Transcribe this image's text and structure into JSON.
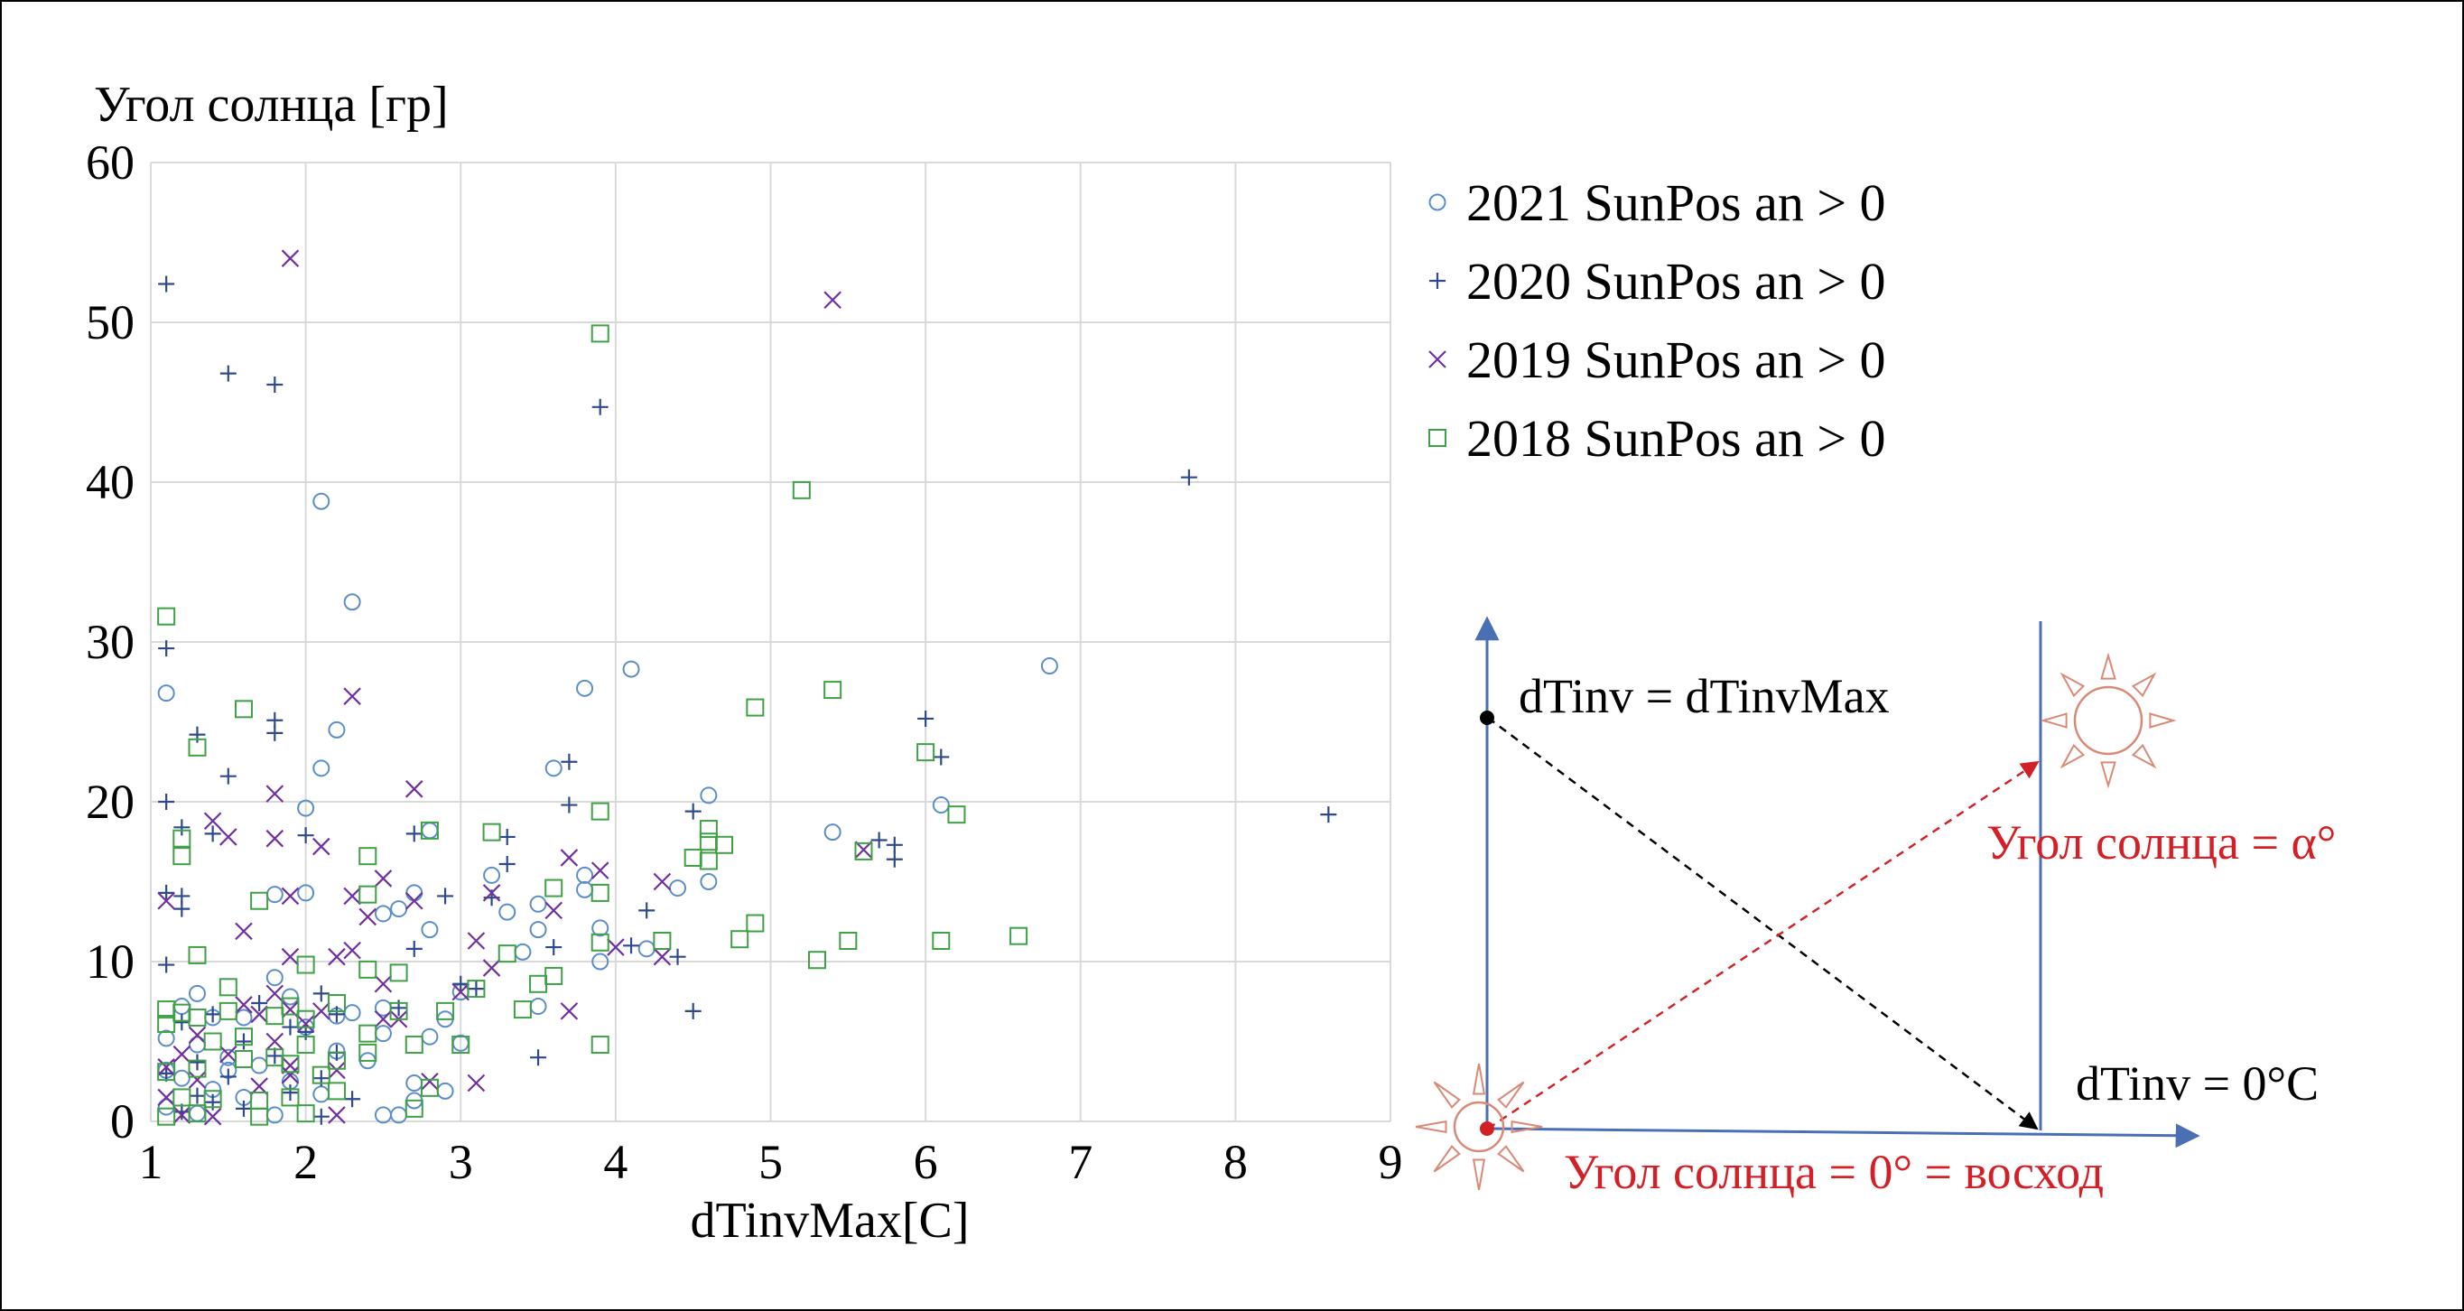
{
  "chart_data": {
    "type": "scatter",
    "title": "",
    "xlabel": "dTinvMax[C]",
    "ylabel": "Угол солнца [гр]",
    "xlim": [
      1,
      9
    ],
    "ylim": [
      0,
      60
    ],
    "x_ticks": [
      1,
      2,
      3,
      4,
      5,
      6,
      7,
      8,
      9
    ],
    "y_ticks": [
      0,
      10,
      20,
      30,
      40,
      50,
      60
    ],
    "grid": true,
    "legend_position": "right",
    "series": [
      {
        "name": "2021 SunPos an > 0",
        "marker": "circle",
        "color": "#5b8ec9",
        "points": [
          [
            1.1,
            26.8
          ],
          [
            2.1,
            38.8
          ],
          [
            2.3,
            32.5
          ],
          [
            3.8,
            27.1
          ],
          [
            4.1,
            28.3
          ],
          [
            6.8,
            28.5
          ],
          [
            2.2,
            24.5
          ],
          [
            2.1,
            22.1
          ],
          [
            3.6,
            22.1
          ],
          [
            4.6,
            20.4
          ],
          [
            6.1,
            19.8
          ],
          [
            2.0,
            19.6
          ],
          [
            5.4,
            18.1
          ],
          [
            2.8,
            18.2
          ],
          [
            3.2,
            15.4
          ],
          [
            3.5,
            13.6
          ],
          [
            3.8,
            15.4
          ],
          [
            4.6,
            15.0
          ],
          [
            1.8,
            14.2
          ],
          [
            2.0,
            14.3
          ],
          [
            2.7,
            14.3
          ],
          [
            4.4,
            14.6
          ],
          [
            2.5,
            13.0
          ],
          [
            3.3,
            13.1
          ],
          [
            2.6,
            13.3
          ],
          [
            2.8,
            12.0
          ],
          [
            3.5,
            12.0
          ],
          [
            3.9,
            12.1
          ],
          [
            3.4,
            10.6
          ],
          [
            3.0,
            8.1
          ],
          [
            3.9,
            10.0
          ],
          [
            2.5,
            7.1
          ],
          [
            2.9,
            6.4
          ],
          [
            2.2,
            6.6
          ],
          [
            1.2,
            7.2
          ],
          [
            1.3,
            8.0
          ],
          [
            1.4,
            6.5
          ],
          [
            1.8,
            9.0
          ],
          [
            1.1,
            5.2
          ],
          [
            1.6,
            6.5
          ],
          [
            2.0,
            5.9
          ],
          [
            2.5,
            5.5
          ],
          [
            2.8,
            5.3
          ],
          [
            1.3,
            4.8
          ],
          [
            1.5,
            4.0
          ],
          [
            1.1,
            3.2
          ],
          [
            1.7,
            3.5
          ],
          [
            1.9,
            2.5
          ],
          [
            2.4,
            3.8
          ],
          [
            2.7,
            1.3
          ],
          [
            1.2,
            2.7
          ],
          [
            1.4,
            2.0
          ],
          [
            1.6,
            1.5
          ],
          [
            2.1,
            1.7
          ],
          [
            2.9,
            1.9
          ],
          [
            3.5,
            7.2
          ],
          [
            3.8,
            14.5
          ],
          [
            2.5,
            0.4
          ],
          [
            2.6,
            0.4
          ],
          [
            1.8,
            0.4
          ],
          [
            1.3,
            0.5
          ],
          [
            1.1,
            0.9
          ],
          [
            2.7,
            2.4
          ],
          [
            3.0,
            4.9
          ],
          [
            2.3,
            6.8
          ],
          [
            1.5,
            3.2
          ],
          [
            4.2,
            10.8
          ],
          [
            2.2,
            4.4
          ],
          [
            1.9,
            7.8
          ]
        ]
      },
      {
        "name": "2020 SunPos an > 0",
        "marker": "plus",
        "color": "#2e4a8c",
        "points": [
          [
            1.1,
            52.4
          ],
          [
            1.5,
            46.8
          ],
          [
            1.8,
            46.1
          ],
          [
            3.9,
            44.7
          ],
          [
            7.7,
            40.3
          ],
          [
            1.1,
            29.6
          ],
          [
            1.8,
            25.1
          ],
          [
            1.8,
            24.3
          ],
          [
            1.3,
            24.2
          ],
          [
            6.0,
            25.2
          ],
          [
            6.1,
            22.8
          ],
          [
            1.5,
            21.6
          ],
          [
            3.7,
            22.5
          ],
          [
            1.1,
            20.0
          ],
          [
            3.7,
            19.8
          ],
          [
            4.5,
            19.4
          ],
          [
            8.6,
            19.2
          ],
          [
            2.0,
            17.9
          ],
          [
            1.2,
            18.4
          ],
          [
            1.4,
            18.0
          ],
          [
            2.7,
            18.0
          ],
          [
            3.3,
            17.8
          ],
          [
            5.7,
            17.6
          ],
          [
            5.8,
            17.3
          ],
          [
            5.8,
            16.4
          ],
          [
            3.3,
            16.1
          ],
          [
            1.1,
            14.3
          ],
          [
            1.2,
            14.1
          ],
          [
            1.2,
            13.3
          ],
          [
            2.9,
            14.1
          ],
          [
            3.2,
            14.0
          ],
          [
            2.7,
            10.8
          ],
          [
            3.6,
            10.9
          ],
          [
            4.2,
            13.2
          ],
          [
            4.4,
            10.3
          ],
          [
            1.1,
            9.8
          ],
          [
            2.1,
            8.0
          ],
          [
            3.0,
            8.6
          ],
          [
            3.1,
            8.3
          ],
          [
            1.4,
            6.7
          ],
          [
            1.7,
            7.4
          ],
          [
            2.2,
            6.7
          ],
          [
            2.6,
            7.1
          ],
          [
            1.2,
            6.2
          ],
          [
            1.6,
            5.0
          ],
          [
            2.0,
            5.6
          ],
          [
            2.2,
            4.3
          ],
          [
            1.8,
            4.1
          ],
          [
            1.3,
            3.7
          ],
          [
            1.5,
            2.8
          ],
          [
            1.1,
            3.0
          ],
          [
            2.1,
            2.7
          ],
          [
            1.9,
            1.8
          ],
          [
            2.3,
            1.4
          ],
          [
            1.4,
            1.2
          ],
          [
            1.2,
            0.6
          ],
          [
            2.1,
            0.3
          ],
          [
            1.6,
            0.8
          ],
          [
            3.5,
            4.0
          ],
          [
            4.5,
            6.9
          ],
          [
            4.1,
            11.0
          ],
          [
            1.9,
            5.9
          ],
          [
            1.3,
            1.6
          ]
        ]
      },
      {
        "name": "2019 SunPos an > 0",
        "marker": "x",
        "color": "#7030a0",
        "points": [
          [
            1.9,
            54.0
          ],
          [
            5.4,
            51.4
          ],
          [
            2.3,
            26.6
          ],
          [
            2.7,
            20.8
          ],
          [
            1.8,
            20.5
          ],
          [
            1.4,
            18.8
          ],
          [
            1.5,
            17.8
          ],
          [
            1.8,
            17.7
          ],
          [
            2.1,
            17.2
          ],
          [
            3.7,
            16.5
          ],
          [
            3.9,
            15.7
          ],
          [
            2.5,
            15.2
          ],
          [
            4.3,
            15.0
          ],
          [
            3.6,
            13.2
          ],
          [
            2.3,
            14.1
          ],
          [
            1.1,
            13.8
          ],
          [
            1.9,
            14.1
          ],
          [
            2.4,
            12.8
          ],
          [
            2.7,
            13.8
          ],
          [
            3.2,
            14.3
          ],
          [
            1.6,
            11.9
          ],
          [
            3.1,
            11.3
          ],
          [
            4.3,
            10.3
          ],
          [
            1.9,
            10.3
          ],
          [
            2.2,
            10.3
          ],
          [
            2.3,
            10.7
          ],
          [
            4.0,
            10.9
          ],
          [
            2.5,
            8.6
          ],
          [
            1.8,
            8.0
          ],
          [
            3.0,
            8.1
          ],
          [
            3.2,
            9.6
          ],
          [
            1.9,
            7.0
          ],
          [
            1.7,
            6.7
          ],
          [
            2.1,
            6.9
          ],
          [
            2.5,
            6.4
          ],
          [
            3.7,
            6.9
          ],
          [
            1.3,
            5.4
          ],
          [
            1.8,
            5.0
          ],
          [
            2.0,
            6.1
          ],
          [
            2.6,
            6.4
          ],
          [
            1.2,
            4.2
          ],
          [
            1.5,
            4.2
          ],
          [
            1.9,
            3.5
          ],
          [
            2.2,
            3.2
          ],
          [
            1.1,
            3.4
          ],
          [
            1.3,
            2.6
          ],
          [
            1.7,
            2.2
          ],
          [
            2.8,
            2.5
          ],
          [
            3.1,
            2.4
          ],
          [
            1.2,
            0.4
          ],
          [
            1.4,
            0.3
          ],
          [
            2.2,
            0.4
          ],
          [
            1.1,
            1.5
          ],
          [
            5.6,
            17.0
          ],
          [
            1.9,
            2.9
          ],
          [
            1.6,
            7.3
          ]
        ]
      },
      {
        "name": "2018 SunPos an > 0",
        "marker": "square",
        "color": "#3fa045",
        "points": [
          [
            3.9,
            49.3
          ],
          [
            5.2,
            39.5
          ],
          [
            1.1,
            31.6
          ],
          [
            5.4,
            27.0
          ],
          [
            4.9,
            25.9
          ],
          [
            1.6,
            25.8
          ],
          [
            1.3,
            23.4
          ],
          [
            6.0,
            23.1
          ],
          [
            2.4,
            16.6
          ],
          [
            1.2,
            17.7
          ],
          [
            1.2,
            16.6
          ],
          [
            1.7,
            13.8
          ],
          [
            2.4,
            14.2
          ],
          [
            2.8,
            18.2
          ],
          [
            3.2,
            18.1
          ],
          [
            3.9,
            19.4
          ],
          [
            4.6,
            18.3
          ],
          [
            4.6,
            17.5
          ],
          [
            4.7,
            17.3
          ],
          [
            4.6,
            16.3
          ],
          [
            4.5,
            16.5
          ],
          [
            5.6,
            16.9
          ],
          [
            6.2,
            19.2
          ],
          [
            3.6,
            14.6
          ],
          [
            3.9,
            14.3
          ],
          [
            1.3,
            10.4
          ],
          [
            1.5,
            8.4
          ],
          [
            2.0,
            9.8
          ],
          [
            2.4,
            9.5
          ],
          [
            2.6,
            9.3
          ],
          [
            3.3,
            10.5
          ],
          [
            3.5,
            8.6
          ],
          [
            3.6,
            9.1
          ],
          [
            3.1,
            8.3
          ],
          [
            3.9,
            11.2
          ],
          [
            4.8,
            11.4
          ],
          [
            4.9,
            12.4
          ],
          [
            5.3,
            10.1
          ],
          [
            5.5,
            11.3
          ],
          [
            6.1,
            11.3
          ],
          [
            6.6,
            11.6
          ],
          [
            4.3,
            11.3
          ],
          [
            1.1,
            7.0
          ],
          [
            1.2,
            6.8
          ],
          [
            1.3,
            6.5
          ],
          [
            1.1,
            6.1
          ],
          [
            1.5,
            6.9
          ],
          [
            1.8,
            6.6
          ],
          [
            1.9,
            7.2
          ],
          [
            2.0,
            6.4
          ],
          [
            2.2,
            7.4
          ],
          [
            2.6,
            6.9
          ],
          [
            2.9,
            6.9
          ],
          [
            3.4,
            7.0
          ],
          [
            1.4,
            5.0
          ],
          [
            1.6,
            5.3
          ],
          [
            2.0,
            4.8
          ],
          [
            2.4,
            5.5
          ],
          [
            2.7,
            4.8
          ],
          [
            3.0,
            4.8
          ],
          [
            1.1,
            3.1
          ],
          [
            1.3,
            3.3
          ],
          [
            1.6,
            3.9
          ],
          [
            1.9,
            3.6
          ],
          [
            2.2,
            3.8
          ],
          [
            2.4,
            4.3
          ],
          [
            1.2,
            1.5
          ],
          [
            1.4,
            1.4
          ],
          [
            1.7,
            1.3
          ],
          [
            1.9,
            1.5
          ],
          [
            2.2,
            1.9
          ],
          [
            2.8,
            2.1
          ],
          [
            1.1,
            0.3
          ],
          [
            1.3,
            0.5
          ],
          [
            1.7,
            0.3
          ],
          [
            2.0,
            0.5
          ],
          [
            2.7,
            0.8
          ],
          [
            3.9,
            4.8
          ],
          [
            1.8,
            4.0
          ],
          [
            2.1,
            2.9
          ]
        ]
      }
    ]
  },
  "diagram": {
    "label_top": "dTinv = dTinvMax",
    "label_bottom_right": "dTinv = 0°C",
    "label_angle": "Угол солнца = α°",
    "label_sunrise": "Угол солнца = 0° = восход",
    "colors": {
      "axis": "#4a6fb5",
      "red": "#d32026",
      "sun": "#d98a76",
      "black": "#000000"
    },
    "icons": [
      "sun-icon-sunrise",
      "sun-icon-raised"
    ]
  }
}
